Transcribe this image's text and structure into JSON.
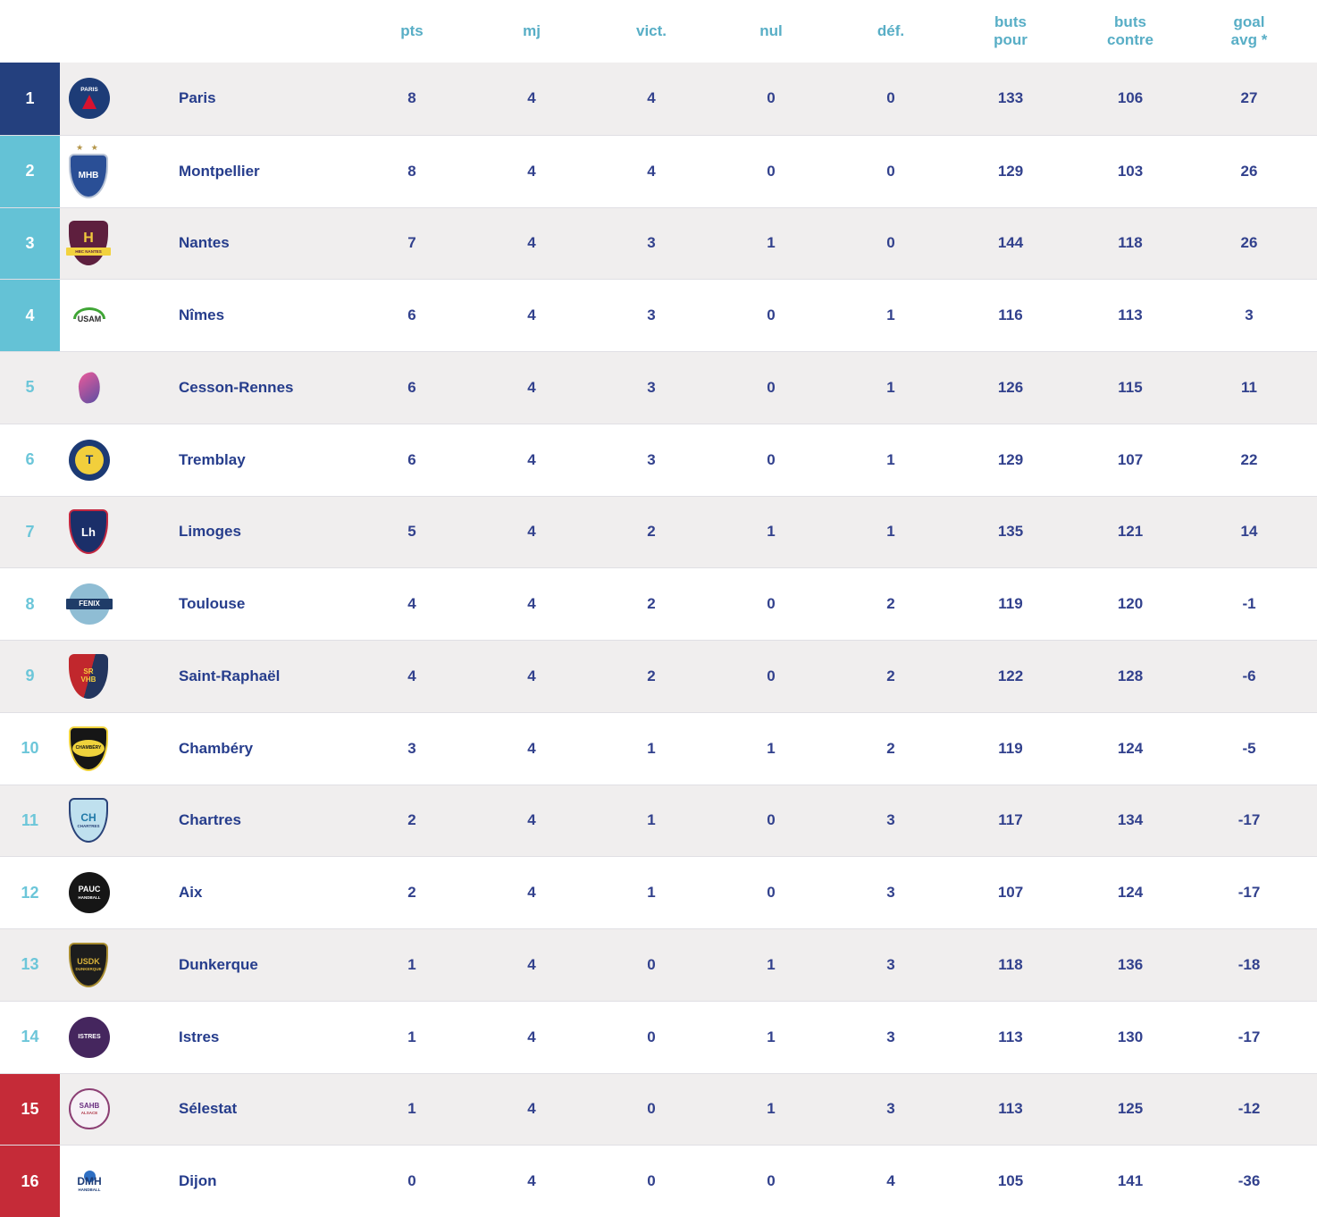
{
  "colors": {
    "leader_bg": "#24407e",
    "qualifier_bg": "#64c2d6",
    "relegation_bg": "#c52b38",
    "rank_plain_text": "#6cc6d9",
    "header_text": "#58aec6",
    "value_text": "#32418d",
    "team_name_text": "#263d8c",
    "row_alt_bg": "#f0eeee",
    "row_border": "#e0dfe4"
  },
  "table": {
    "columns": [
      {
        "key": "pts",
        "label": "pts"
      },
      {
        "key": "mj",
        "label": "mj"
      },
      {
        "key": "vict",
        "label": "vict."
      },
      {
        "key": "nul",
        "label": "nul"
      },
      {
        "key": "def",
        "label": "déf."
      },
      {
        "key": "buts_pour",
        "label": "buts\npour"
      },
      {
        "key": "buts_contre",
        "label": "buts\ncontre"
      },
      {
        "key": "goal_avg",
        "label": "goal\navg *"
      }
    ],
    "teams": [
      {
        "rank": 1,
        "name": "Paris",
        "zone": "leader",
        "pts": 8,
        "mj": 4,
        "vict": 4,
        "nul": 0,
        "def": 0,
        "buts_pour": 133,
        "buts_contre": 106,
        "goal_avg": 27,
        "logo": {
          "shape": "circle",
          "bg": "#1d3c77",
          "label": "PARIS",
          "labelColor": "#ffffff",
          "labelSize": 6.5,
          "eiffel": true
        }
      },
      {
        "rank": 2,
        "name": "Montpellier",
        "zone": "qualifier",
        "pts": 8,
        "mj": 4,
        "vict": 4,
        "nul": 0,
        "def": 0,
        "buts_pour": 129,
        "buts_contre": 103,
        "goal_avg": 26,
        "logo": {
          "shape": "shield",
          "bg": "#2a4f96",
          "border": "#b9c4d6",
          "stars": "★ ★",
          "starsColor": "#b49548",
          "label": "MHB",
          "labelColor": "#ffffff",
          "labelSize": 10
        }
      },
      {
        "rank": 3,
        "name": "Nantes",
        "zone": "qualifier",
        "pts": 7,
        "mj": 4,
        "vict": 3,
        "nul": 1,
        "def": 0,
        "buts_pour": 144,
        "buts_contre": 118,
        "goal_avg": 26,
        "logo": {
          "shape": "shield",
          "bg": "#5e1f3e",
          "label": "H",
          "labelColor": "#f0c93c",
          "labelSize": 16,
          "sub": "HBC NANTES",
          "subColor": "#5e1f3e",
          "subBand": "#f2d23e"
        }
      },
      {
        "rank": 4,
        "name": "Nîmes",
        "zone": "qualifier",
        "pts": 6,
        "mj": 4,
        "vict": 3,
        "nul": 0,
        "def": 1,
        "buts_pour": 116,
        "buts_contre": 113,
        "goal_avg": 3,
        "logo": {
          "shape": "plain",
          "arc": "#3fa535",
          "label": "USAM",
          "labelColor": "#2b2b2b",
          "labelSize": 9
        }
      },
      {
        "rank": 5,
        "name": "Cesson-Rennes",
        "zone": "none",
        "pts": 6,
        "mj": 4,
        "vict": 3,
        "nul": 0,
        "def": 1,
        "buts_pour": 126,
        "buts_contre": 115,
        "goal_avg": 11,
        "logo": {
          "shape": "plain",
          "figure": [
            "#ec5a9a",
            "#5b4ea3"
          ]
        }
      },
      {
        "rank": 6,
        "name": "Tremblay",
        "zone": "none",
        "pts": 6,
        "mj": 4,
        "vict": 3,
        "nul": 0,
        "def": 1,
        "buts_pour": 129,
        "buts_contre": 107,
        "goal_avg": 22,
        "logo": {
          "shape": "circle",
          "bg": "#1c3a74",
          "inner": "#f2cf3c",
          "label": "T",
          "labelColor": "#1c3a74",
          "labelSize": 14
        }
      },
      {
        "rank": 7,
        "name": "Limoges",
        "zone": "none",
        "pts": 5,
        "mj": 4,
        "vict": 2,
        "nul": 1,
        "def": 1,
        "buts_pour": 135,
        "buts_contre": 121,
        "goal_avg": 14,
        "logo": {
          "shape": "shield",
          "bg": "#1b2f69",
          "border": "#c32740",
          "label": "Lh",
          "labelColor": "#ffffff",
          "labelSize": 13
        }
      },
      {
        "rank": 8,
        "name": "Toulouse",
        "zone": "none",
        "pts": 4,
        "mj": 4,
        "vict": 2,
        "nul": 0,
        "def": 2,
        "buts_pour": 119,
        "buts_contre": 120,
        "goal_avg": -1,
        "logo": {
          "shape": "circle",
          "bg": "#8fbdd4",
          "label": "FENIX",
          "labelColor": "#ffffff",
          "labelSize": 8,
          "band": "#1f3c68"
        }
      },
      {
        "rank": 9,
        "name": "Saint-Raphaël",
        "zone": "none",
        "pts": 4,
        "mj": 4,
        "vict": 2,
        "nul": 0,
        "def": 2,
        "buts_pour": 122,
        "buts_contre": 128,
        "goal_avg": -6,
        "logo": {
          "shape": "shield",
          "bg": "linear-gradient(105deg,#c1272d 52%,#23355e 52%)",
          "label": "SR\nVHB",
          "labelColor": "#f5ce3e",
          "labelSize": 8
        }
      },
      {
        "rank": 10,
        "name": "Chambéry",
        "zone": "none",
        "pts": 3,
        "mj": 4,
        "vict": 1,
        "nul": 1,
        "def": 2,
        "buts_pour": 119,
        "buts_contre": 124,
        "goal_avg": -5,
        "logo": {
          "shape": "shield",
          "bg": "#161616",
          "border": "#efd23c",
          "oval": "#efd23c",
          "label": "CHAMBÉRY",
          "labelColor": "#161616",
          "labelSize": 5
        }
      },
      {
        "rank": 11,
        "name": "Chartres",
        "zone": "none",
        "pts": 2,
        "mj": 4,
        "vict": 1,
        "nul": 0,
        "def": 3,
        "buts_pour": 117,
        "buts_contre": 134,
        "goal_avg": -17,
        "logo": {
          "shape": "shield",
          "bg": "#bfe0ee",
          "border": "#2a4379",
          "label": "CH",
          "labelColor": "#2179a8",
          "labelSize": 12,
          "sub": "CHARTRES",
          "subColor": "#2a4379"
        }
      },
      {
        "rank": 12,
        "name": "Aix",
        "zone": "none",
        "pts": 2,
        "mj": 4,
        "vict": 1,
        "nul": 0,
        "def": 3,
        "buts_pour": 107,
        "buts_contre": 124,
        "goal_avg": -17,
        "logo": {
          "shape": "circle",
          "bg": "#161616",
          "label": "PAUC",
          "labelColor": "#ffffff",
          "labelSize": 9,
          "sub": "HANDBALL",
          "subColor": "#ffffff"
        }
      },
      {
        "rank": 13,
        "name": "Dunkerque",
        "zone": "none",
        "pts": 1,
        "mj": 4,
        "vict": 0,
        "nul": 1,
        "def": 3,
        "buts_pour": 118,
        "buts_contre": 136,
        "goal_avg": -18,
        "logo": {
          "shape": "shield",
          "bg": "#1d1d1d",
          "border": "#a88c30",
          "label": "USDK",
          "labelColor": "#d8b23a",
          "labelSize": 9,
          "sub": "DUNKERQUE",
          "subColor": "#d8b23a"
        }
      },
      {
        "rank": 14,
        "name": "Istres",
        "zone": "none",
        "pts": 1,
        "mj": 4,
        "vict": 0,
        "nul": 1,
        "def": 3,
        "buts_pour": 113,
        "buts_contre": 130,
        "goal_avg": -17,
        "logo": {
          "shape": "circle",
          "bg": "#45265e",
          "label": "ISTRES",
          "labelColor": "#ffffff",
          "labelSize": 7
        }
      },
      {
        "rank": 15,
        "name": "Sélestat",
        "zone": "relegation",
        "pts": 1,
        "mj": 4,
        "vict": 0,
        "nul": 1,
        "def": 3,
        "buts_pour": 113,
        "buts_contre": 125,
        "goal_avg": -12,
        "logo": {
          "shape": "circle",
          "bg": "#f6f1f6",
          "border": "#8c3f74",
          "label": "SAHB",
          "labelColor": "#6a2f80",
          "labelSize": 8,
          "sub": "ALSACE",
          "subColor": "#b03a4a"
        }
      },
      {
        "rank": 16,
        "name": "Dijon",
        "zone": "relegation",
        "pts": 0,
        "mj": 4,
        "vict": 0,
        "nul": 0,
        "def": 4,
        "buts_pour": 105,
        "buts_contre": 141,
        "goal_avg": -36,
        "logo": {
          "shape": "plain",
          "dot": "#2e6fc3",
          "label": "DMH",
          "labelColor": "#1d3c77",
          "labelSize": 12,
          "sub": "HANDBALL",
          "subColor": "#1d3c77"
        }
      }
    ]
  }
}
